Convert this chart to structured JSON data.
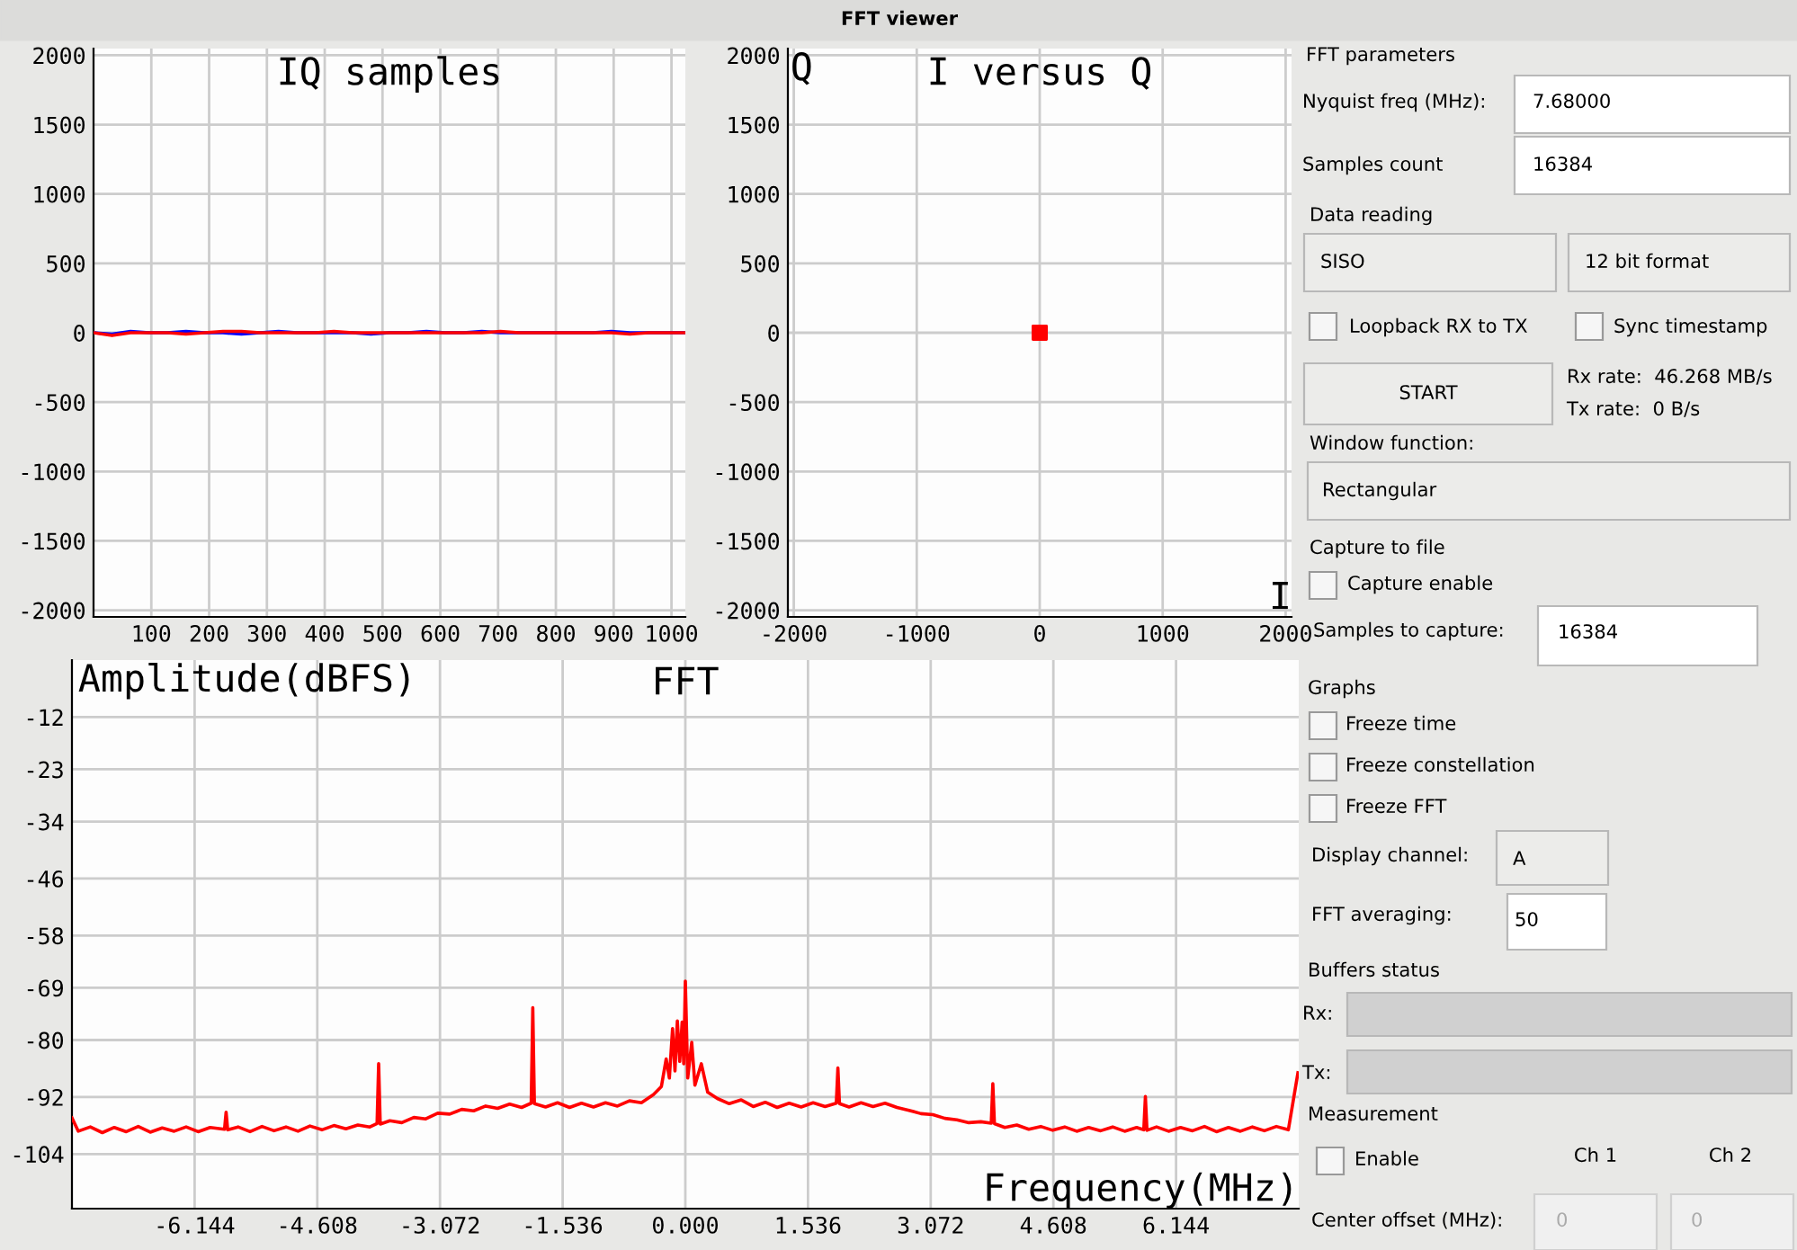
{
  "chart_data": [
    {
      "type": "line",
      "title": "IQ samples",
      "xlim": [
        0,
        1024
      ],
      "ylim": [
        -2048,
        2048
      ],
      "xticks": [
        100,
        200,
        300,
        400,
        500,
        600,
        700,
        800,
        900,
        1000
      ],
      "yticks": [
        -2000,
        -1500,
        -1000,
        -500,
        0,
        500,
        1000,
        1500,
        2000
      ],
      "grid": true,
      "x": [
        0,
        32,
        64,
        96,
        128,
        160,
        192,
        224,
        256,
        288,
        320,
        352,
        384,
        416,
        448,
        480,
        512,
        544,
        576,
        608,
        640,
        672,
        704,
        736,
        768,
        800,
        832,
        864,
        896,
        928,
        960,
        992,
        1024
      ],
      "series": [
        {
          "color": "#0000ff",
          "values": [
            0,
            -10,
            10,
            0,
            0,
            10,
            0,
            0,
            -10,
            0,
            10,
            0,
            0,
            0,
            0,
            -10,
            0,
            0,
            10,
            0,
            0,
            10,
            0,
            0,
            0,
            0,
            0,
            0,
            10,
            0,
            0,
            0,
            0
          ]
        },
        {
          "color": "#ff0000",
          "values": [
            0,
            -20,
            0,
            0,
            0,
            -10,
            0,
            10,
            10,
            0,
            0,
            0,
            0,
            10,
            0,
            0,
            0,
            0,
            0,
            0,
            0,
            0,
            10,
            0,
            0,
            0,
            0,
            0,
            0,
            -10,
            0,
            0,
            0
          ]
        }
      ]
    },
    {
      "type": "scatter",
      "title": "I versus Q",
      "xlabel": "I",
      "ylabel": "Q",
      "xlim": [
        -2048,
        2048
      ],
      "ylim": [
        -2048,
        2048
      ],
      "xticks": [
        -2000,
        -1000,
        0,
        1000,
        2000
      ],
      "yticks": [
        -2000,
        -1500,
        -1000,
        -500,
        0,
        500,
        1000,
        1500,
        2000
      ],
      "grid": true,
      "marker": "square",
      "series": [
        {
          "color": "#ff0000",
          "x": [
            0
          ],
          "values": [
            0
          ]
        }
      ]
    },
    {
      "type": "line",
      "title": "FFT",
      "xlabel": "Frequency(MHz)",
      "ylabel": "Amplitude(dBFS)",
      "xlim": [
        -7.68,
        7.68
      ],
      "ylim": [
        -115.5,
        0
      ],
      "xticks": [
        -6.144,
        -4.608,
        -3.072,
        -1.536,
        {
          "value": 0,
          "label": "0.000"
        },
        1.536,
        3.072,
        4.608,
        6.144
      ],
      "yticks": [
        -104,
        -92,
        -80,
        -69,
        -58,
        -46,
        -34,
        -23,
        -12
      ],
      "grid": true,
      "x": [
        -7.68,
        -7.6,
        -7.45,
        -7.3,
        -7.15,
        -7.0,
        -6.85,
        -6.7,
        -6.55,
        -6.4,
        -6.25,
        -6.1,
        -5.95,
        -5.77,
        -5.75,
        -5.73,
        -5.6,
        -5.45,
        -5.3,
        -5.15,
        -5.0,
        -4.85,
        -4.7,
        -4.55,
        -4.4,
        -4.25,
        -4.1,
        -3.95,
        -3.86,
        -3.84,
        -3.82,
        -3.7,
        -3.55,
        -3.4,
        -3.25,
        -3.1,
        -2.95,
        -2.8,
        -2.65,
        -2.5,
        -2.35,
        -2.2,
        -2.05,
        -1.93,
        -1.91,
        -1.89,
        -1.75,
        -1.6,
        -1.45,
        -1.3,
        -1.15,
        -1.0,
        -0.85,
        -0.7,
        -0.55,
        -0.4,
        -0.3,
        -0.24,
        -0.2,
        -0.16,
        -0.13,
        -0.1,
        -0.07,
        -0.04,
        -0.02,
        0.0,
        0.03,
        0.08,
        0.12,
        0.2,
        0.28,
        0.4,
        0.55,
        0.7,
        0.85,
        1.0,
        1.15,
        1.3,
        1.45,
        1.6,
        1.75,
        1.89,
        1.91,
        1.93,
        2.05,
        2.2,
        2.35,
        2.5,
        2.65,
        2.8,
        2.95,
        3.1,
        3.25,
        3.4,
        3.55,
        3.7,
        3.83,
        3.85,
        3.87,
        4.0,
        4.15,
        4.3,
        4.45,
        4.6,
        4.75,
        4.9,
        5.05,
        5.2,
        5.35,
        5.5,
        5.65,
        5.74,
        5.76,
        5.78,
        5.9,
        6.05,
        6.2,
        6.35,
        6.5,
        6.65,
        6.8,
        6.95,
        7.1,
        7.25,
        7.4,
        7.55,
        7.67
      ],
      "series": [
        {
          "color": "#ff0000",
          "values": [
            -96.4,
            -99.2,
            -98.3,
            -99.5,
            -98.4,
            -99.3,
            -98.2,
            -99.4,
            -98.5,
            -99.2,
            -98.3,
            -99.3,
            -98.4,
            -98.8,
            -95.2,
            -98.9,
            -98.3,
            -99.3,
            -98.2,
            -99.1,
            -98.3,
            -99.2,
            -98.1,
            -98.9,
            -98.0,
            -98.7,
            -97.9,
            -98.3,
            -97.6,
            -85.0,
            -97.7,
            -97.0,
            -97.4,
            -96.3,
            -96.6,
            -95.4,
            -95.6,
            -94.6,
            -94.9,
            -93.9,
            -94.4,
            -93.5,
            -94.2,
            -93.3,
            -73.2,
            -93.4,
            -94.1,
            -93.2,
            -94.2,
            -93.3,
            -94.1,
            -93.2,
            -93.9,
            -92.8,
            -93.2,
            -91.5,
            -89.8,
            -84.0,
            -88.0,
            -77.6,
            -86.5,
            -76.0,
            -84.5,
            -76.2,
            -85.0,
            -67.6,
            -88.0,
            -80.5,
            -89.5,
            -85.0,
            -91.0,
            -92.3,
            -93.4,
            -92.6,
            -94.0,
            -93.1,
            -94.2,
            -93.3,
            -94.1,
            -93.2,
            -94.0,
            -93.3,
            -85.9,
            -93.4,
            -94.1,
            -93.2,
            -94.0,
            -93.3,
            -94.2,
            -94.8,
            -95.5,
            -95.7,
            -96.5,
            -96.8,
            -97.4,
            -97.2,
            -97.5,
            -89.2,
            -97.6,
            -98.4,
            -97.9,
            -98.8,
            -98.2,
            -99.0,
            -98.3,
            -99.2,
            -98.4,
            -99.1,
            -98.3,
            -99.2,
            -98.4,
            -98.9,
            -91.9,
            -99.0,
            -98.3,
            -99.2,
            -98.4,
            -99.1,
            -98.2,
            -99.3,
            -98.4,
            -99.2,
            -98.3,
            -99.1,
            -98.2,
            -98.9,
            -86.9
          ]
        }
      ]
    },
    {
      "type": "other",
      "annotations": [
        "FFT viewer",
        "FFT parameters",
        "Nyquist freq (MHz):",
        "7.68000",
        "Samples count",
        "16384",
        "Data reading",
        "SISO",
        "12 bit format",
        "Loopback RX to TX",
        "Sync timestamp",
        "START",
        "Rx rate:  46.268 MB/s",
        "Tx rate:  0 B/s",
        "Window function:",
        "Rectangular",
        "Capture to file",
        "Capture enable",
        "Samples to capture:",
        "16384",
        "Graphs",
        "Freeze time",
        "Freeze constellation",
        "Freeze FFT",
        "Display channel:",
        "A",
        "FFT averaging:",
        "50",
        "Buffers status",
        "Rx:",
        "Tx:",
        "Measurement",
        "Enable",
        "Ch 1",
        "Ch 2",
        "Center offset (MHz):",
        "0",
        "0"
      ]
    }
  ]
}
